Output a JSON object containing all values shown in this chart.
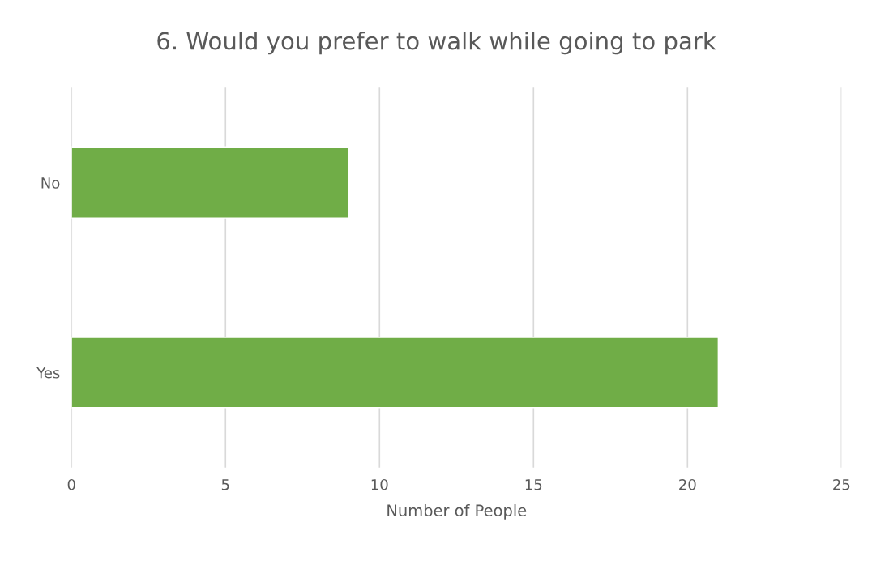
{
  "chart_data": {
    "type": "bar",
    "orientation": "horizontal",
    "title": "6. Would you prefer to walk while going to park",
    "xlabel": "Number of People",
    "categories": [
      "No",
      "Yes"
    ],
    "values": [
      9,
      21
    ],
    "color": "#70ad47",
    "xlim": [
      0,
      25
    ],
    "xticks": [
      0,
      5,
      10,
      15,
      20,
      25
    ],
    "grid": "x",
    "legend": false
  }
}
